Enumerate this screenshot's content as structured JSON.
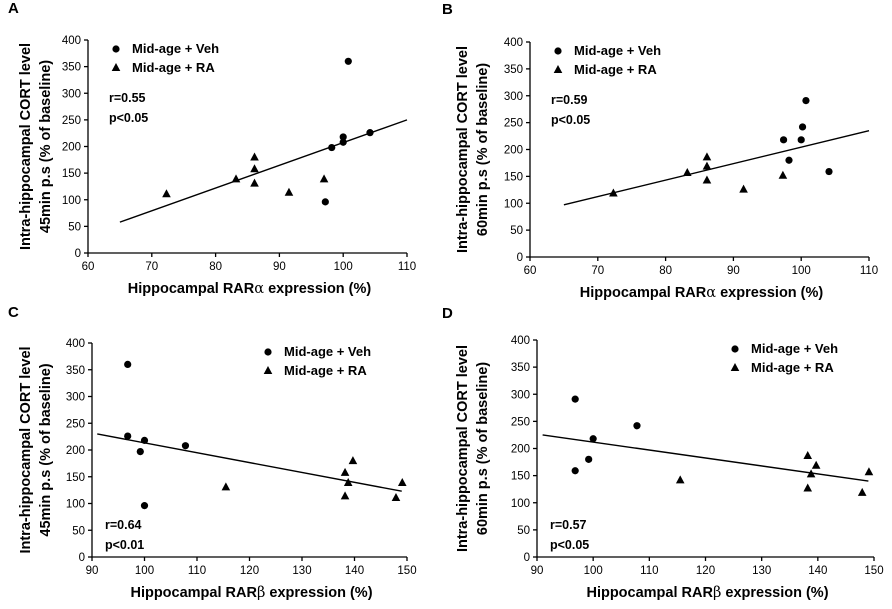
{
  "chart_data": [
    {
      "type": "scatter",
      "panel": "A",
      "xlabel_prefix": "Hippocampal RAR",
      "xlabel_symbol": "α",
      "xlabel_suffix": " expression (%)",
      "ylabel_line1": "Intra-hippocampal CORT level",
      "ylabel_line2": "45min p.s (% of baseline)",
      "xlim": [
        60,
        110
      ],
      "xticks": [
        60,
        70,
        80,
        90,
        100,
        110
      ],
      "ylim": [
        0,
        400
      ],
      "yticks": [
        0,
        50,
        100,
        150,
        200,
        250,
        300,
        350,
        400
      ],
      "stat_r": "r=0.55",
      "stat_p": "p<0.05",
      "stat_pos": "upper-left",
      "legend_position": "top-left",
      "series": [
        {
          "name": "Mid-age + Veh",
          "marker": "circle",
          "points": [
            [
              97.2,
              96
            ],
            [
              98.2,
              198
            ],
            [
              100,
              208
            ],
            [
              100,
              218
            ],
            [
              100.8,
              360
            ],
            [
              104.2,
              226
            ]
          ]
        },
        {
          "name": "Mid-age + RA",
          "marker": "triangle",
          "points": [
            [
              72.3,
              111
            ],
            [
              83.2,
              139
            ],
            [
              86.1,
              131
            ],
            [
              86.1,
              158
            ],
            [
              86.1,
              180
            ],
            [
              91.5,
              114
            ],
            [
              97,
              139
            ]
          ]
        }
      ],
      "fit_line": {
        "x": [
          65,
          110
        ],
        "y": [
          58,
          250
        ]
      }
    },
    {
      "type": "scatter",
      "panel": "B",
      "xlabel_prefix": "Hippocampal RAR",
      "xlabel_symbol": "α",
      "xlabel_suffix": " expression (%)",
      "ylabel_line1": "Intra-hippocampal CORT level",
      "ylabel_line2": "60min p.s (% of baseline)",
      "xlim": [
        60,
        110
      ],
      "xticks": [
        60,
        70,
        80,
        90,
        100,
        110
      ],
      "ylim": [
        0,
        400
      ],
      "yticks": [
        0,
        50,
        100,
        150,
        200,
        250,
        300,
        350,
        400
      ],
      "stat_r": "r=0.59",
      "stat_p": "p<0.05",
      "stat_pos": "upper-left",
      "legend_position": "top-left",
      "series": [
        {
          "name": "Mid-age + Veh",
          "marker": "circle",
          "points": [
            [
              97.4,
              218
            ],
            [
              98.2,
              180
            ],
            [
              100,
              218
            ],
            [
              100.2,
              242
            ],
            [
              100.7,
              291
            ],
            [
              104.1,
              159
            ]
          ]
        },
        {
          "name": "Mid-age + RA",
          "marker": "triangle",
          "points": [
            [
              72.3,
              119
            ],
            [
              83.2,
              157
            ],
            [
              86.1,
              143
            ],
            [
              86.1,
              169
            ],
            [
              86.1,
              186
            ],
            [
              91.5,
              126
            ],
            [
              97.3,
              152
            ]
          ]
        }
      ],
      "fit_line": {
        "x": [
          65,
          110
        ],
        "y": [
          97,
          235
        ]
      }
    },
    {
      "type": "scatter",
      "panel": "C",
      "xlabel_prefix": "Hippocampal RAR",
      "xlabel_symbol": "β",
      "xlabel_suffix": " expression (%)",
      "ylabel_line1": "Intra-hippocampal CORT level",
      "ylabel_line2": "45min p.s (% of baseline)",
      "xlim": [
        90,
        150
      ],
      "xticks": [
        90,
        100,
        110,
        120,
        130,
        140,
        150
      ],
      "ylim": [
        0,
        400
      ],
      "yticks": [
        0,
        50,
        100,
        150,
        200,
        250,
        300,
        350,
        400
      ],
      "stat_r": "r=0.64",
      "stat_p": "p<0.01",
      "stat_pos": "lower-left",
      "legend_position": "top-right",
      "series": [
        {
          "name": "Mid-age + Veh",
          "marker": "circle",
          "points": [
            [
              96.8,
              360
            ],
            [
              96.8,
              226
            ],
            [
              99.2,
              197
            ],
            [
              100,
              218
            ],
            [
              100,
              96
            ],
            [
              107.8,
              208
            ]
          ]
        },
        {
          "name": "Mid-age + RA",
          "marker": "triangle",
          "points": [
            [
              115.5,
              131
            ],
            [
              138.2,
              114
            ],
            [
              138.2,
              158
            ],
            [
              138.8,
              139
            ],
            [
              139.7,
              180
            ],
            [
              147.9,
              111
            ],
            [
              149.1,
              139
            ]
          ]
        }
      ],
      "fit_line": {
        "x": [
          91,
          149
        ],
        "y": [
          230,
          123
        ]
      }
    },
    {
      "type": "scatter",
      "panel": "D",
      "xlabel_prefix": "Hippocampal RAR",
      "xlabel_symbol": "β",
      "xlabel_suffix": " expression (%)",
      "ylabel_line1": "Intra-hippocampal CORT level",
      "ylabel_line2": "60min p.s (% of baseline)",
      "xlim": [
        90,
        150
      ],
      "xticks": [
        90,
        100,
        110,
        120,
        130,
        140,
        150
      ],
      "ylim": [
        0,
        400
      ],
      "yticks": [
        0,
        50,
        100,
        150,
        200,
        250,
        300,
        350,
        400
      ],
      "stat_r": "r=0.57",
      "stat_p": "p<0.05",
      "stat_pos": "lower-left",
      "legend_position": "top-right",
      "series": [
        {
          "name": "Mid-age + Veh",
          "marker": "circle",
          "points": [
            [
              96.8,
              291
            ],
            [
              96.8,
              159
            ],
            [
              99.2,
              180
            ],
            [
              100,
              218
            ],
            [
              107.8,
              242
            ]
          ]
        },
        {
          "name": "Mid-age + RA",
          "marker": "triangle",
          "points": [
            [
              115.5,
              142
            ],
            [
              138.2,
              127
            ],
            [
              138.2,
              187
            ],
            [
              138.8,
              153
            ],
            [
              139.7,
              169
            ],
            [
              147.9,
              119
            ],
            [
              149.1,
              157
            ]
          ]
        }
      ],
      "fit_line": {
        "x": [
          91,
          149
        ],
        "y": [
          225,
          140
        ]
      }
    }
  ]
}
